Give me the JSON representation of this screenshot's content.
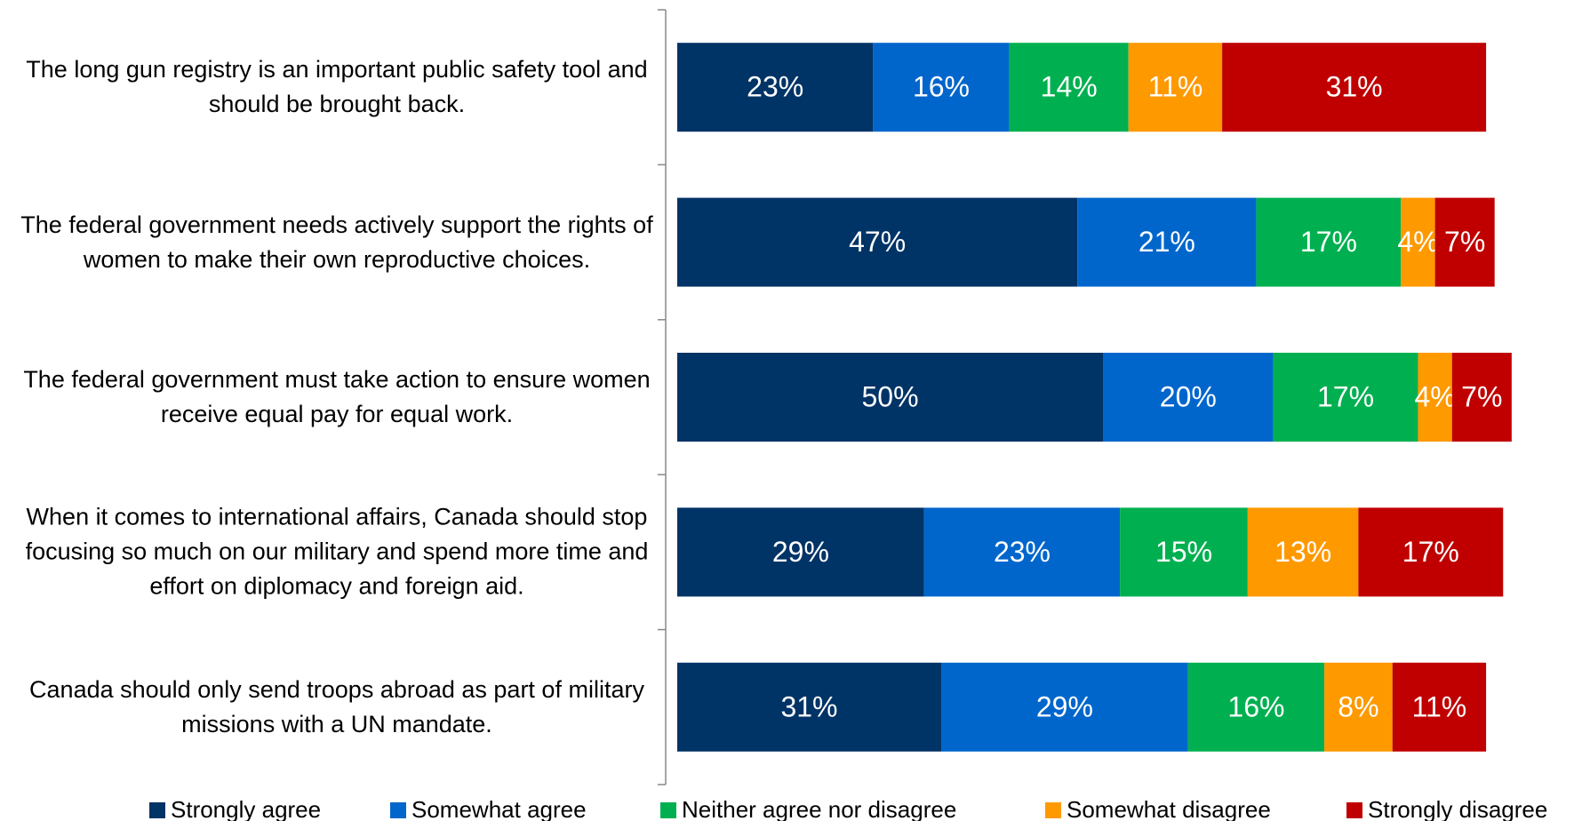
{
  "chart_data": {
    "type": "stacked-bar-horizontal",
    "categories": [
      "The long gun registry is an important public safety tool and should be brought back.",
      "The federal government needs actively support the rights of women to make their own reproductive choices.",
      "The federal government must take action to ensure women receive equal pay for equal work.",
      "When it comes to international affairs, Canada should stop focusing so much on our military and spend more time and effort on diplomacy and foreign aid.",
      "Canada should only send troops abroad as part of military missions with a UN mandate."
    ],
    "series": [
      {
        "name": "Strongly agree",
        "color": "#003366",
        "values": [
          23,
          47,
          50,
          29,
          31
        ],
        "value_labels": [
          "23%",
          "47%",
          "50%",
          "29%",
          "31%"
        ]
      },
      {
        "name": "Somewhat agree",
        "color": "#0066cc",
        "values": [
          16,
          21,
          20,
          23,
          29
        ],
        "value_labels": [
          "16%",
          "21%",
          "20%",
          "23%",
          "29%"
        ]
      },
      {
        "name": "Neither agree nor disagree",
        "color": "#00b050",
        "values": [
          14,
          17,
          17,
          15,
          16
        ],
        "value_labels": [
          "14%",
          "17%",
          "17%",
          "15%",
          "16%"
        ]
      },
      {
        "name": "Somewhat disagree",
        "color": "#ff9900",
        "values": [
          11,
          4,
          4,
          13,
          8
        ],
        "value_labels": [
          "11%",
          "4%",
          "4%",
          "13%",
          "8%"
        ]
      },
      {
        "name": "Strongly disagree",
        "color": "#c00000",
        "values": [
          31,
          7,
          7,
          17,
          11
        ],
        "value_labels": [
          "31%",
          "7%",
          "7%",
          "17%",
          "11%"
        ]
      }
    ],
    "legend": "bottom"
  }
}
